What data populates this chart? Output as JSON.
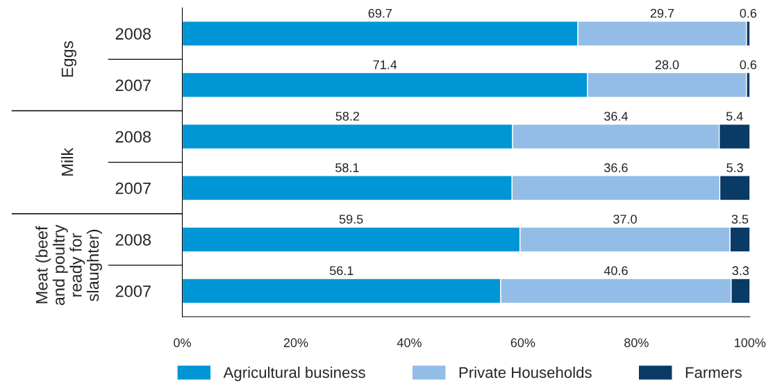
{
  "chart_data": {
    "type": "bar",
    "orientation": "horizontal",
    "stacked": true,
    "categories": [
      "2008",
      "2007",
      "2008",
      "2007",
      "2008",
      "2007"
    ],
    "annotations": [
      "Eggs",
      "Milk",
      "Meat (beef\nand poultry\nready for\nslaughter)"
    ],
    "series": [
      {
        "name": "Agricultural business",
        "color": "#0096d6",
        "values": [
          69.7,
          71.4,
          58.2,
          58.1,
          59.5,
          56.1
        ],
        "value_labels": [
          "69.7",
          "71.4",
          "58.2",
          "58.1",
          "59.5",
          "56.1"
        ]
      },
      {
        "name": "Private Households",
        "color": "#93bde6",
        "values": [
          29.7,
          28.0,
          36.4,
          36.6,
          37.0,
          40.6
        ],
        "value_labels": [
          "29.7",
          "28.0",
          "36.4",
          "36.6",
          "37.0",
          "40.6"
        ]
      },
      {
        "name": "Farmers",
        "color": "#0a3a66",
        "values": [
          0.6,
          0.6,
          5.4,
          5.3,
          3.5,
          3.3
        ],
        "value_labels": [
          "0.6",
          "0.6",
          "5.4",
          "5.3",
          "3.5",
          "3.3"
        ]
      }
    ],
    "xlim": [
      0,
      100
    ],
    "xticks": [
      {
        "value": 0,
        "label": "0%"
      },
      {
        "value": 20,
        "label": "20%"
      },
      {
        "value": 40,
        "label": "40%"
      },
      {
        "value": 60,
        "label": "60%"
      },
      {
        "value": 80,
        "label": "80%"
      },
      {
        "value": 100,
        "label": "100%"
      }
    ],
    "grid": false,
    "legend": "bottom"
  }
}
